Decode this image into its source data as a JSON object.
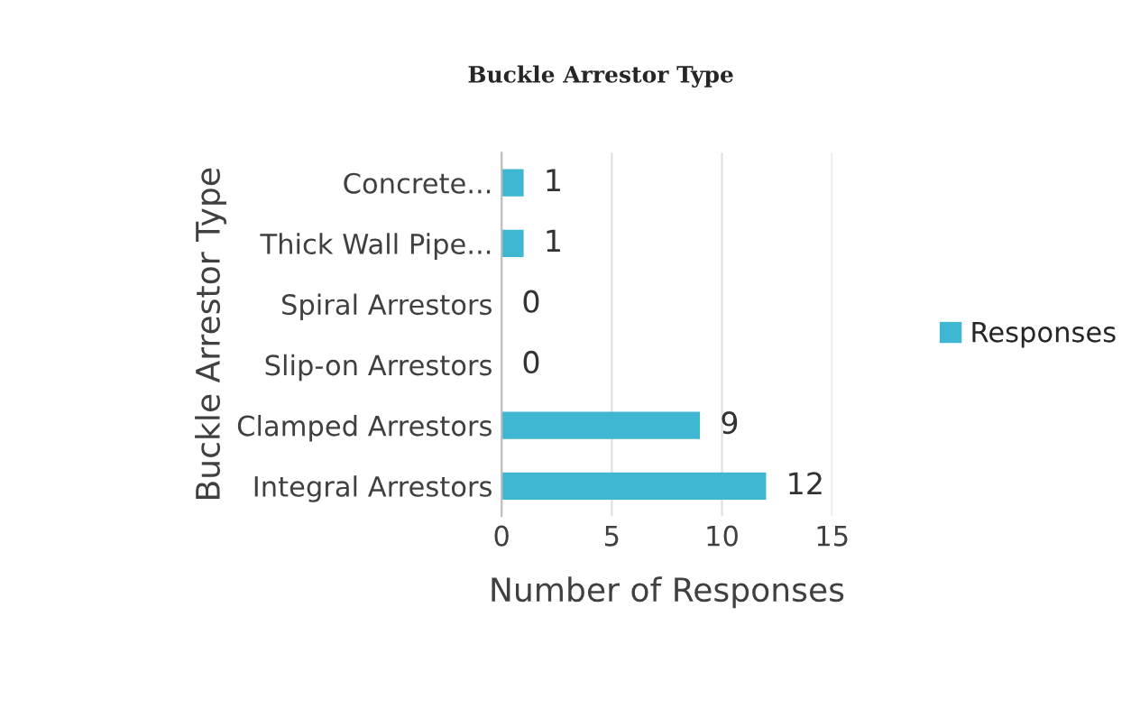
{
  "chart_data": {
    "type": "bar",
    "orientation": "horizontal",
    "title": "Buckle Arrestor Type",
    "xlabel": "Number of Responses",
    "ylabel": "Buckle Arrestor Type",
    "categories": [
      "Concrete...",
      "Thick Wall Pipe...",
      "Spiral Arrestors",
      "Slip-on Arrestors",
      "Clamped Arrestors",
      "Integral Arrestors"
    ],
    "series": [
      {
        "name": "Responses",
        "color": "#3fb6d2",
        "values": [
          1,
          1,
          0,
          0,
          9,
          12
        ]
      }
    ],
    "xlim": [
      0,
      15
    ],
    "xticks": [
      0,
      5,
      10,
      15
    ],
    "grid": "x",
    "legend": "right",
    "data_labels": true
  }
}
